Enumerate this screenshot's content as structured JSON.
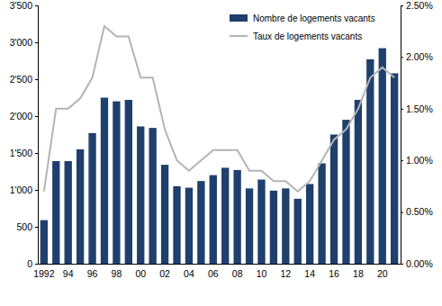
{
  "chart_data": {
    "type": "bar",
    "categories": [
      "1992",
      null,
      "94",
      null,
      "96",
      null,
      "98",
      null,
      "00",
      null,
      "02",
      null,
      "04",
      null,
      "06",
      null,
      "08",
      null,
      "10",
      null,
      "12",
      null,
      "14",
      null,
      "16",
      null,
      "18",
      null,
      "20",
      null
    ],
    "series": [
      {
        "name": "Nombre de logements vacants",
        "type": "bar",
        "color": "#1f3f6d",
        "values": [
          590,
          1390,
          1390,
          1550,
          1770,
          2250,
          2200,
          2220,
          1860,
          1840,
          1340,
          1050,
          1030,
          1120,
          1200,
          1300,
          1270,
          1020,
          1140,
          990,
          1020,
          880,
          1080,
          1360,
          1750,
          1950,
          2220,
          2770,
          2920,
          2580
        ]
      },
      {
        "name": "Taux de logements vacants",
        "type": "line",
        "axis": "y2",
        "color": "#b4b4b4",
        "values": [
          0.7,
          1.5,
          1.5,
          1.6,
          1.8,
          2.3,
          2.2,
          2.2,
          1.8,
          1.8,
          1.3,
          1.0,
          0.9,
          1.0,
          1.1,
          1.1,
          1.1,
          0.9,
          0.9,
          0.8,
          0.8,
          0.7,
          0.8,
          1.0,
          1.2,
          1.3,
          1.5,
          1.8,
          1.9,
          1.8
        ]
      }
    ],
    "ylim": [
      0,
      3500
    ],
    "yticks": [
      0,
      500,
      {
        "value": 1000,
        "label": "1'000"
      },
      {
        "value": 1500,
        "label": "1'500"
      },
      {
        "value": 2000,
        "label": "2'000"
      },
      {
        "value": 2500,
        "label": "2'500"
      },
      {
        "value": 3000,
        "label": "3'000"
      },
      {
        "value": 3500,
        "label": "3'500"
      }
    ],
    "y2lim": [
      0,
      2.5
    ],
    "y2ticks": [
      {
        "value": 0,
        "label": "0.00%"
      },
      {
        "value": 0.5,
        "label": "0.50%"
      },
      {
        "value": 1,
        "label": "1.00%"
      },
      {
        "value": 1.5,
        "label": "1.50%"
      },
      {
        "value": 2,
        "label": "2.00%"
      },
      {
        "value": 2.5,
        "label": "2.50%"
      }
    ],
    "grid": false,
    "legend": "top-right"
  }
}
